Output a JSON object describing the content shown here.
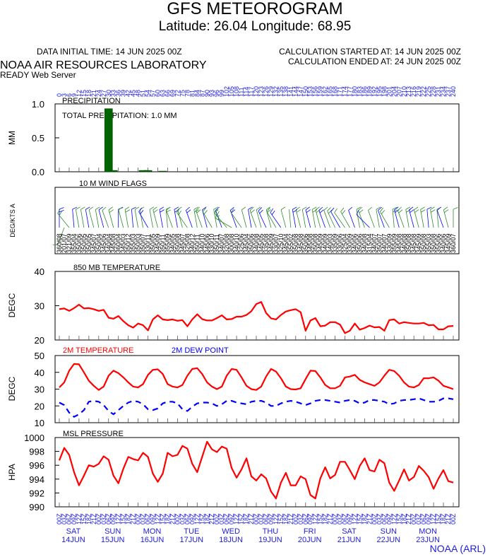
{
  "header": {
    "title": "GFS METEOROGRAM",
    "coords": "Latitude: 26.04 Longitude:  68.95",
    "initial_time": "DATA INITIAL TIME: 14 JUN 2025 00Z",
    "calc_started": "CALCULATION STARTED AT: 14 JUN 2025 00Z",
    "calc_ended": "CALCULATION ENDED AT: 24 JUN 2025 00Z",
    "lab": "NOAA AIR RESOURCES LABORATORY",
    "server": "READY Web Server"
  },
  "footer": {
    "credit": "NOAA (ARL)"
  },
  "colors": {
    "red": "#ff0000",
    "blue": "#0000ff",
    "green": "#006400",
    "text_blue": "#2020dd",
    "wind_green": "#2e8b2e"
  },
  "forecast_hours": [
    0,
    3,
    6,
    9,
    12,
    15,
    18,
    21,
    24,
    27,
    30,
    33,
    36,
    39,
    42,
    45,
    48,
    51,
    54,
    57,
    60,
    63,
    66,
    69,
    72,
    75,
    78,
    81,
    84,
    87,
    90,
    93,
    96,
    99,
    102,
    105,
    108,
    111,
    114,
    117,
    120,
    123,
    126,
    129,
    132,
    135,
    138,
    141,
    144,
    147,
    150,
    153,
    156,
    159,
    162,
    165,
    168,
    171,
    174,
    177,
    180,
    183,
    186,
    189,
    192,
    195,
    198,
    201,
    204,
    207,
    210,
    213,
    216,
    219,
    222,
    225,
    228,
    231,
    234,
    237,
    240
  ],
  "time_labels": [
    "00",
    "03",
    "06",
    "09",
    "12",
    "15",
    "18",
    "21",
    "00",
    "03",
    "06",
    "09",
    "12",
    "15",
    "18",
    "21",
    "00",
    "03",
    "06",
    "09",
    "12",
    "15",
    "18",
    "21",
    "00",
    "03",
    "06",
    "09",
    "12",
    "15",
    "18",
    "21",
    "00",
    "03",
    "06",
    "09",
    "12",
    "15",
    "18",
    "21",
    "00",
    "03",
    "06",
    "09",
    "12",
    "15",
    "18",
    "21",
    "00",
    "03",
    "06",
    "09",
    "12",
    "15",
    "18",
    "21",
    "00",
    "03",
    "06",
    "09",
    "12",
    "15",
    "18",
    "21",
    "00",
    "03",
    "06",
    "09",
    "12",
    "15",
    "18",
    "21",
    "00",
    "03",
    "06",
    "09",
    "12",
    "15",
    "18",
    "21",
    "00"
  ],
  "days": [
    {
      "dow": "SAT",
      "date": "14JUN"
    },
    {
      "dow": "SUN",
      "date": "15JUN"
    },
    {
      "dow": "MON",
      "date": "16JUN"
    },
    {
      "dow": "TUE",
      "date": "17JUN"
    },
    {
      "dow": "WED",
      "date": "18JUN"
    },
    {
      "dow": "THU",
      "date": "19JUN"
    },
    {
      "dow": "FRI",
      "date": "20JUN"
    },
    {
      "dow": "SAT",
      "date": "21JUN"
    },
    {
      "dow": "SUN",
      "date": "22JUN"
    },
    {
      "dow": "MON",
      "date": "23JUN"
    }
  ],
  "chart_data": [
    {
      "type": "bar",
      "title": "PRECIPITATION",
      "annotation": "TOTAL PRECIPITATION:   1.0 MM",
      "ylabel": "MM",
      "ylim": [
        0,
        1
      ],
      "yticks": [
        "0.0",
        "0.5",
        "1.0"
      ],
      "x_hours": [
        30,
        33,
        51,
        54,
        63
      ],
      "values": [
        0.93,
        0.02,
        0.02,
        0.02,
        0.01
      ]
    },
    {
      "type": "table",
      "title": "10 M  WIND FLAGS",
      "ylabel": "DEG/KTS  A",
      "direction_deg": [
        360,
        201,
        321,
        355,
        350,
        350,
        350,
        345,
        350,
        345,
        340,
        345,
        360,
        345,
        350,
        355,
        350,
        350,
        330,
        350,
        345,
        350,
        355,
        340,
        350,
        345,
        325,
        340,
        350,
        340,
        345,
        330,
        350,
        340,
        320,
        300,
        340,
        325,
        345,
        350,
        340,
        345,
        335,
        345,
        330,
        325,
        345,
        355,
        350,
        345,
        350,
        345,
        350,
        345,
        340,
        340,
        335,
        330,
        325,
        330,
        340,
        350,
        340,
        315,
        340,
        350,
        340,
        330,
        355,
        345,
        340,
        350,
        345,
        345,
        350,
        355,
        350,
        355,
        340,
        345,
        360
      ],
      "speed_kts": [
        8,
        7,
        9,
        4,
        6,
        5,
        5,
        7,
        4,
        6,
        4,
        8,
        4,
        3,
        12,
        3,
        3,
        7,
        11,
        5,
        9,
        11,
        9,
        5,
        8,
        7,
        8,
        12,
        11,
        10,
        6,
        10,
        11,
        7,
        8,
        8,
        10,
        6,
        4,
        6,
        8,
        5,
        8,
        9,
        7,
        10,
        4,
        2,
        8,
        8,
        6,
        8,
        8,
        9,
        9,
        3,
        9,
        6,
        4,
        9,
        6,
        6,
        8,
        4,
        7,
        7,
        7,
        9,
        9,
        8,
        8,
        8,
        8,
        9,
        8,
        3,
        8,
        6,
        6,
        9,
        7
      ]
    },
    {
      "type": "line",
      "title": "850 MB  TEMPERATURE",
      "ylabel": "DEGC",
      "ylim": [
        20,
        40
      ],
      "yticks": [
        "20",
        "30",
        "40"
      ],
      "series": [
        {
          "values": [
            29.0,
            29.2,
            28.5,
            29.3,
            30.3,
            29.2,
            29.3,
            29.0,
            28.5,
            28.8,
            26.5,
            26.2,
            27.0,
            25.5,
            24.3,
            23.6,
            24.8,
            24.3,
            22.8,
            26.0,
            27.2,
            26.0,
            25.8,
            26.0,
            25.6,
            25.8,
            24.0,
            26.0,
            27.5,
            26.1,
            25.7,
            25.7,
            26.4,
            27.2,
            26.0,
            26.1,
            26.8,
            26.8,
            27.3,
            28.4,
            30.5,
            31.1,
            27.9,
            26.3,
            26.0,
            27.3,
            28.3,
            28.7,
            29.0,
            28.1,
            22.7,
            25.7,
            26.4,
            24.0,
            24.2,
            25.2,
            25.2,
            24.5,
            22.0,
            22.7,
            24.8,
            23.0,
            23.5,
            24.2,
            23.7,
            23.8,
            22.7,
            25.8,
            26.0,
            24.8,
            25.2,
            25.0,
            24.8,
            24.8,
            25.0,
            24.3,
            24.4,
            23.1,
            23.1,
            24.0,
            24.1
          ]
        }
      ]
    },
    {
      "type": "line",
      "ylabel": "DEGC",
      "ylim": [
        10,
        50
      ],
      "yticks": [
        "10",
        "20",
        "30",
        "40",
        "50"
      ],
      "series": [
        {
          "name": "2M TEMPERATURE",
          "style": "solid",
          "values": [
            31.0,
            34.0,
            41.0,
            45.0,
            44.8,
            40.0,
            35.0,
            32.0,
            29.5,
            31.5,
            38.0,
            41.0,
            39.5,
            37.0,
            34.0,
            31.5,
            31.0,
            33.0,
            38.5,
            41.5,
            41.8,
            39.0,
            33.0,
            31.5,
            31.0,
            32.5,
            38.0,
            42.0,
            42.5,
            39.0,
            34.0,
            31.5,
            30.0,
            31.5,
            38.0,
            42.0,
            41.5,
            37.0,
            32.0,
            30.0,
            29.5,
            31.5,
            37.5,
            42.0,
            40.5,
            36.5,
            31.5,
            30.0,
            29.8,
            30.5,
            36.0,
            41.0,
            40.8,
            37.0,
            32.5,
            30.5,
            30.5,
            32.0,
            37.0,
            37.5,
            38.5,
            35.5,
            34.0,
            33.0,
            32.0,
            34.0,
            38.0,
            41.5,
            40.8,
            38.0,
            34.0,
            31.5,
            31.0,
            32.5,
            36.5,
            36.5,
            37.0,
            35.0,
            32.0,
            31.0,
            30.0
          ]
        },
        {
          "name": "2M  DEW POINT",
          "style": "dashed",
          "values": [
            22.0,
            20.5,
            16.0,
            13.5,
            15.0,
            17.5,
            22.5,
            23.0,
            22.5,
            20.5,
            17.0,
            15.0,
            17.5,
            20.0,
            22.0,
            23.0,
            22.5,
            21.0,
            18.0,
            17.5,
            18.5,
            21.5,
            22.5,
            22.5,
            21.5,
            18.0,
            17.0,
            19.5,
            21.5,
            22.0,
            22.0,
            21.5,
            20.0,
            21.0,
            23.0,
            23.0,
            22.0,
            21.5,
            21.0,
            22.5,
            23.0,
            23.0,
            22.0,
            20.0,
            20.0,
            21.5,
            22.5,
            23.0,
            22.5,
            21.5,
            20.5,
            21.5,
            23.0,
            23.5,
            23.5,
            23.0,
            22.5,
            22.0,
            23.0,
            23.5,
            23.0,
            21.5,
            22.0,
            23.5,
            23.5,
            23.0,
            22.5,
            21.0,
            21.5,
            23.0,
            23.5,
            23.5,
            24.0,
            24.5,
            23.5,
            22.5,
            22.5,
            23.0,
            24.5,
            24.5,
            24.0
          ]
        }
      ]
    },
    {
      "type": "line",
      "title": "MSL PRESSURE",
      "ylabel": "HPA",
      "ylim": [
        990,
        1000
      ],
      "yticks": [
        "990",
        "992",
        "994",
        "996",
        "998",
        "1000"
      ],
      "series": [
        {
          "values": [
            996.7,
            998.5,
            997.5,
            995.0,
            993.1,
            994.5,
            996.0,
            995.8,
            996.2,
            997.3,
            996.8,
            994.5,
            993.4,
            995.5,
            997.2,
            996.9,
            996.7,
            997.8,
            997.2,
            994.8,
            993.6,
            994.8,
            997.8,
            997.3,
            997.5,
            998.8,
            998.4,
            996.2,
            995.0,
            997.2,
            999.4,
            998.3,
            997.9,
            998.7,
            998.4,
            995.6,
            994.2,
            995.4,
            997.0,
            994.4,
            993.8,
            994.7,
            994.1,
            992.2,
            991.2,
            993.5,
            994.9,
            993.1,
            993.1,
            994.4,
            994.0,
            991.7,
            991.2,
            994.1,
            995.7,
            994.1,
            994.6,
            996.5,
            996.5,
            995.3,
            994.0,
            995.9,
            997.0,
            995.3,
            995.1,
            996.8,
            996.3,
            993.5,
            992.3,
            993.8,
            995.4,
            993.8,
            994.3,
            995.9,
            995.2,
            994.3,
            992.6,
            994.1,
            995.3,
            993.7,
            993.5
          ]
        }
      ]
    }
  ]
}
